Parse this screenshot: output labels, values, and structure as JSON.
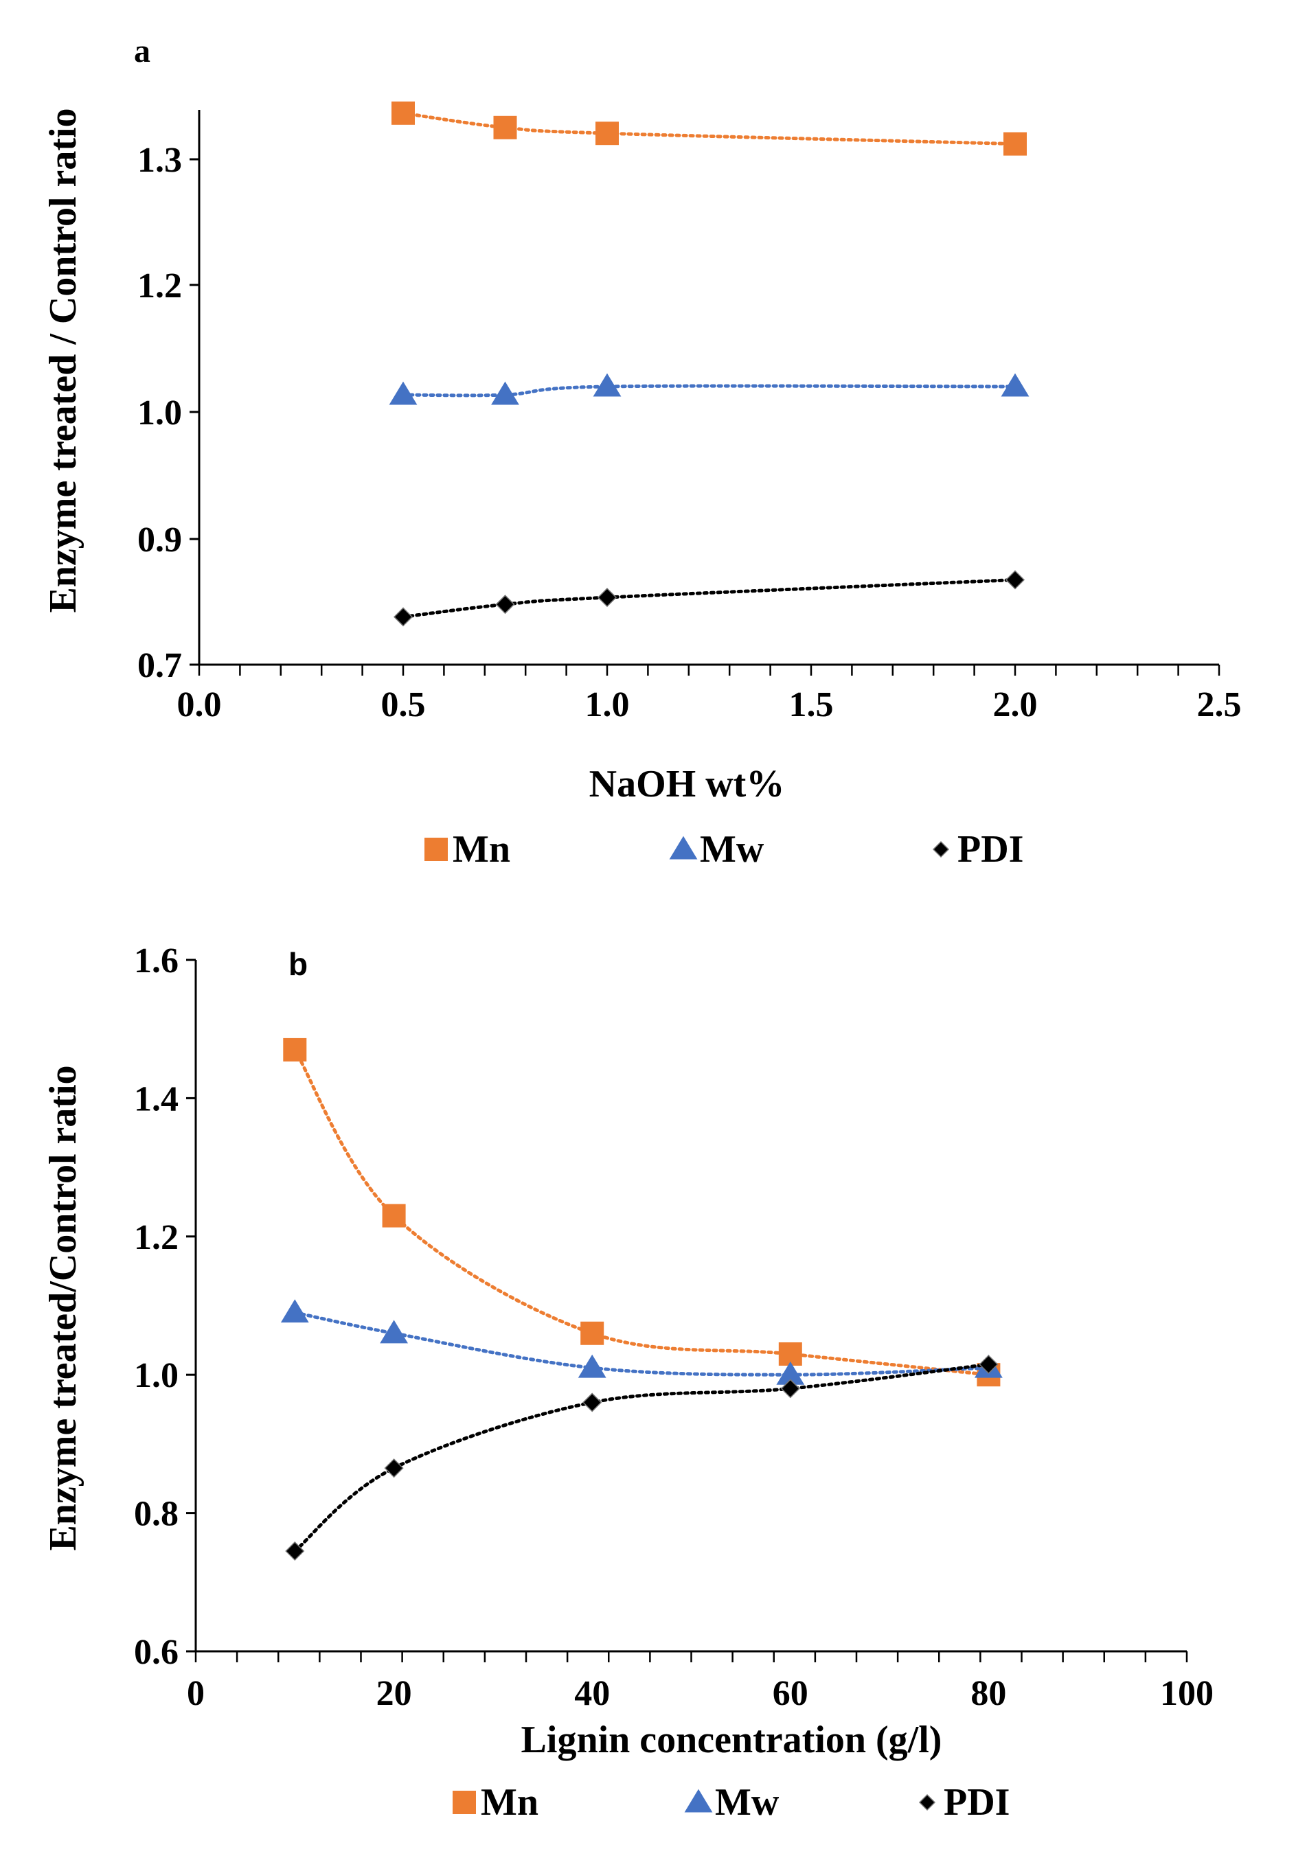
{
  "chart_data": [
    {
      "type": "line",
      "panel_label": "a",
      "xlabel": "NaOH wt%",
      "ylabel": "Enzyme treated / Control ratio",
      "xlim": [
        0.0,
        2.5
      ],
      "ylim": [
        0.7,
        1.35
      ],
      "y_ticks": [
        0.7,
        0.9,
        1.0,
        1.2,
        1.3
      ],
      "y_tick_labels": [
        "0.7",
        "0.9",
        "1.0",
        "1.2",
        "1.3"
      ],
      "x_ticks": [
        0.0,
        0.5,
        1.0,
        1.5,
        2.0,
        2.5
      ],
      "x_tick_labels": [
        "0.0",
        "0.5",
        "1.0",
        "1.5",
        "2.0",
        "2.5"
      ],
      "x": [
        0.5,
        0.75,
        1.0,
        2.0
      ],
      "series": [
        {
          "name": "Mn",
          "color": "#ED7D31",
          "marker": "square",
          "values": [
            1.348,
            1.333,
            1.327,
            1.316
          ]
        },
        {
          "name": "Mw",
          "color": "#4472C4",
          "marker": "triangle",
          "values": [
            1.027,
            1.027,
            1.04,
            1.04
          ]
        },
        {
          "name": "PDI",
          "color": "#000000",
          "marker": "diamond",
          "values": [
            0.776,
            0.796,
            0.807,
            0.835
          ]
        }
      ],
      "legend": [
        "Mn",
        "Mw",
        "PDI"
      ],
      "legend_position": "bottom"
    },
    {
      "type": "line",
      "panel_label": "b",
      "xlabel": "Lignin concentration (g/l)",
      "ylabel": "Enzyme treated/Control ratio",
      "xlim": [
        0,
        100
      ],
      "ylim": [
        0.6,
        1.6
      ],
      "y_ticks": [
        0.6,
        0.8,
        1.0,
        1.2,
        1.4,
        1.6
      ],
      "y_tick_labels": [
        "0.6",
        "0.8",
        "1.0",
        "1.2",
        "1.4",
        "1.6"
      ],
      "x_ticks": [
        0,
        20,
        40,
        60,
        80,
        100
      ],
      "x_tick_labels": [
        "0",
        "20",
        "40",
        "60",
        "80",
        "100"
      ],
      "x": [
        10,
        20,
        40,
        60,
        80
      ],
      "series": [
        {
          "name": "Mn",
          "color": "#ED7D31",
          "marker": "square",
          "values": [
            1.47,
            1.23,
            1.06,
            1.03,
            1.0
          ]
        },
        {
          "name": "Mw",
          "color": "#4472C4",
          "marker": "triangle",
          "values": [
            1.09,
            1.06,
            1.01,
            1.0,
            1.01
          ]
        },
        {
          "name": "PDI",
          "color": "#000000",
          "marker": "diamond",
          "values": [
            0.745,
            0.865,
            0.96,
            0.98,
            1.015
          ]
        }
      ],
      "legend": [
        "Mn",
        "Mw",
        "PDI"
      ],
      "legend_position": "bottom"
    }
  ]
}
